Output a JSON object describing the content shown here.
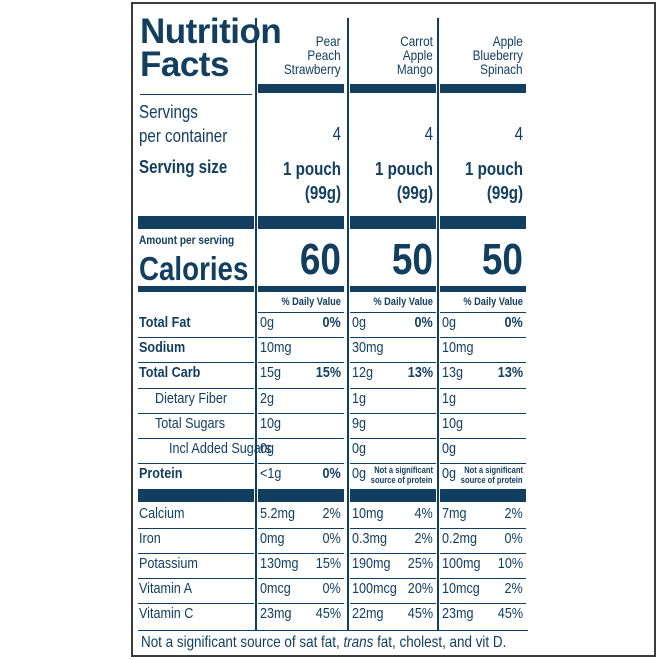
{
  "title": [
    "Nutrition",
    "Facts"
  ],
  "servings_label": [
    "Servings",
    "per container"
  ],
  "serving_size_label": "Serving size",
  "amount_per_serving_label": "Amount per serving",
  "calories_label": "Calories",
  "products": [
    {
      "name": [
        "Pear",
        "Peach",
        "Strawberry"
      ],
      "servings": "4",
      "serving_size": [
        "1 pouch",
        "(99g)"
      ],
      "calories": "60",
      "dv_header": "% Daily Value",
      "total_fat": [
        "0g",
        "0%"
      ],
      "sodium": [
        "10mg",
        ""
      ],
      "total_carb": [
        "15g",
        "15%"
      ],
      "fiber": [
        "2g",
        ""
      ],
      "sugars": [
        "10g",
        ""
      ],
      "added_sugars": [
        "0g",
        ""
      ],
      "protein": [
        "<1g",
        "0%"
      ],
      "calcium": [
        "5.2mg",
        "2%"
      ],
      "iron": [
        "0mg",
        "0%"
      ],
      "potassium": [
        "130mg",
        "15%"
      ],
      "vitamin_a": [
        "0mcg",
        "0%"
      ],
      "vitamin_c": [
        "23mg",
        "45%"
      ]
    },
    {
      "name": [
        "Carrot",
        "Apple",
        "Mango"
      ],
      "servings": "4",
      "serving_size": [
        "1 pouch",
        "(99g)"
      ],
      "calories": "50",
      "dv_header": "% Daily Value",
      "total_fat": [
        "0g",
        "0%"
      ],
      "sodium": [
        "30mg",
        ""
      ],
      "total_carb": [
        "12g",
        "13%"
      ],
      "fiber": [
        "1g",
        ""
      ],
      "sugars": [
        "9g",
        ""
      ],
      "added_sugars": [
        "0g",
        ""
      ],
      "protein": [
        "0g",
        "Not a significant source of protein"
      ],
      "calcium": [
        "10mg",
        "4%"
      ],
      "iron": [
        "0.3mg",
        "2%"
      ],
      "potassium": [
        "190mg",
        "25%"
      ],
      "vitamin_a": [
        "100mcg",
        "20%"
      ],
      "vitamin_c": [
        "22mg",
        "45%"
      ]
    },
    {
      "name": [
        "Apple",
        "Blueberry",
        "Spinach"
      ],
      "servings": "4",
      "serving_size": [
        "1 pouch",
        "(99g)"
      ],
      "calories": "50",
      "dv_header": "% Daily Value",
      "total_fat": [
        "0g",
        "0%"
      ],
      "sodium": [
        "10mg",
        ""
      ],
      "total_carb": [
        "13g",
        "13%"
      ],
      "fiber": [
        "1g",
        ""
      ],
      "sugars": [
        "10g",
        ""
      ],
      "added_sugars": [
        "0g",
        ""
      ],
      "protein": [
        "0g",
        "Not a significant source of protein"
      ],
      "calcium": [
        "7mg",
        "2%"
      ],
      "iron": [
        "0.2mg",
        "0%"
      ],
      "potassium": [
        "100mg",
        "10%"
      ],
      "vitamin_a": [
        "10mcg",
        "2%"
      ],
      "vitamin_c": [
        "23mg",
        "45%"
      ]
    }
  ],
  "nutrients": {
    "total_fat": "Total Fat",
    "sodium": "Sodium",
    "total_carb": "Total Carb",
    "fiber": "Dietary Fiber",
    "sugars": "Total Sugars",
    "added_sugars": "Incl Added Sugars",
    "protein": "Protein",
    "calcium": "Calcium",
    "iron": "Iron",
    "potassium": "Potassium",
    "vitamin_a": "Vitamin A",
    "vitamin_c": "Vitamin C"
  },
  "footnote_parts": [
    "Not a significant source of sat fat, ",
    "trans",
    " fat, cholest, and vit D."
  ],
  "colors": {
    "ink": "#123f60",
    "frame": "#3c3c3c"
  }
}
